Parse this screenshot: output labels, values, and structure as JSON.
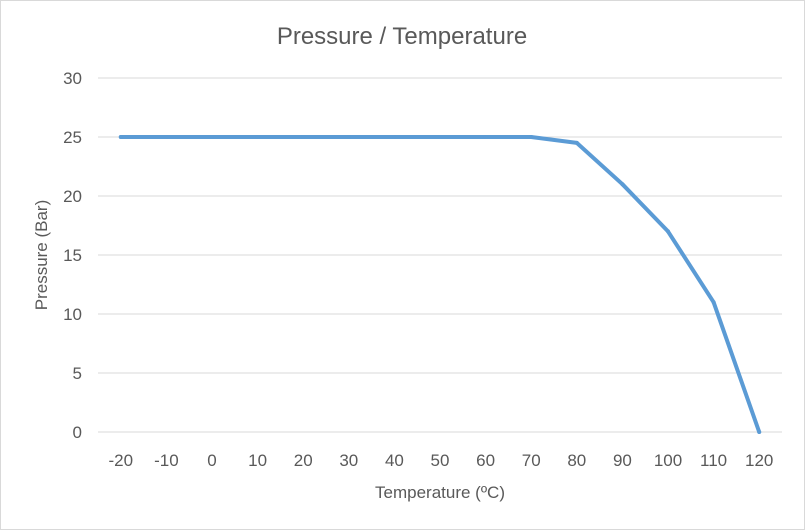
{
  "chart_data": {
    "type": "line",
    "title": "Pressure / Temperature",
    "xlabel": "Temperature (ºC)",
    "ylabel": "Pressure (Bar)",
    "x": [
      "-20",
      "-10",
      "0",
      "10",
      "20",
      "30",
      "40",
      "50",
      "60",
      "70",
      "80",
      "90",
      "100",
      "110",
      "120"
    ],
    "series": [
      {
        "values": [
          25,
          25,
          25,
          25,
          25,
          25,
          25,
          25,
          25,
          25,
          24.5,
          21,
          17,
          11,
          0
        ]
      }
    ],
    "ylim": [
      0,
      30
    ],
    "yticks": [
      "0",
      "5",
      "10",
      "15",
      "20",
      "25",
      "30"
    ],
    "grid": "horizontal",
    "legend": "none",
    "colors": {
      "line": "#5b9bd5",
      "grid": "#d9d9d9",
      "text": "#595959"
    }
  }
}
